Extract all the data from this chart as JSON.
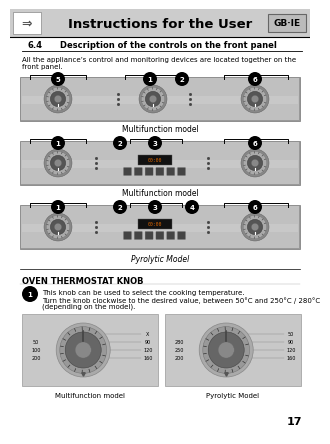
{
  "title": "Instructions for the User",
  "gb_ie_label": "GB·IE",
  "section": "6.4",
  "section_title": "Description of the controls on the front panel",
  "body_text1": "All the appliance’s control and monitoring devices are located together on the",
  "body_text2": "front panel.",
  "panel_captions": [
    "Multifunction model",
    "Multifunction model",
    "Pyrolytic Model"
  ],
  "knob_section_title": "OVEN THERMOSTAT KNOB",
  "knob_number": "1",
  "knob_text1": "This knob can be used to select the cooking temperature.",
  "knob_text2": "Turn the knob clockwise to the desired value, between 50°C and 250°C / 280°C",
  "knob_text3": "(depending on the model).",
  "knob_caption1": "Multifunction model",
  "knob_caption2": "Pyrolytic Model",
  "page_number": "17",
  "bg_color": "#ffffff",
  "header_bg": "#cccccc",
  "panel_bg_outer": "#aaaaaa",
  "panel_bg_inner": "#c8c8c8",
  "knob_box_bg": "#c8c8c8"
}
